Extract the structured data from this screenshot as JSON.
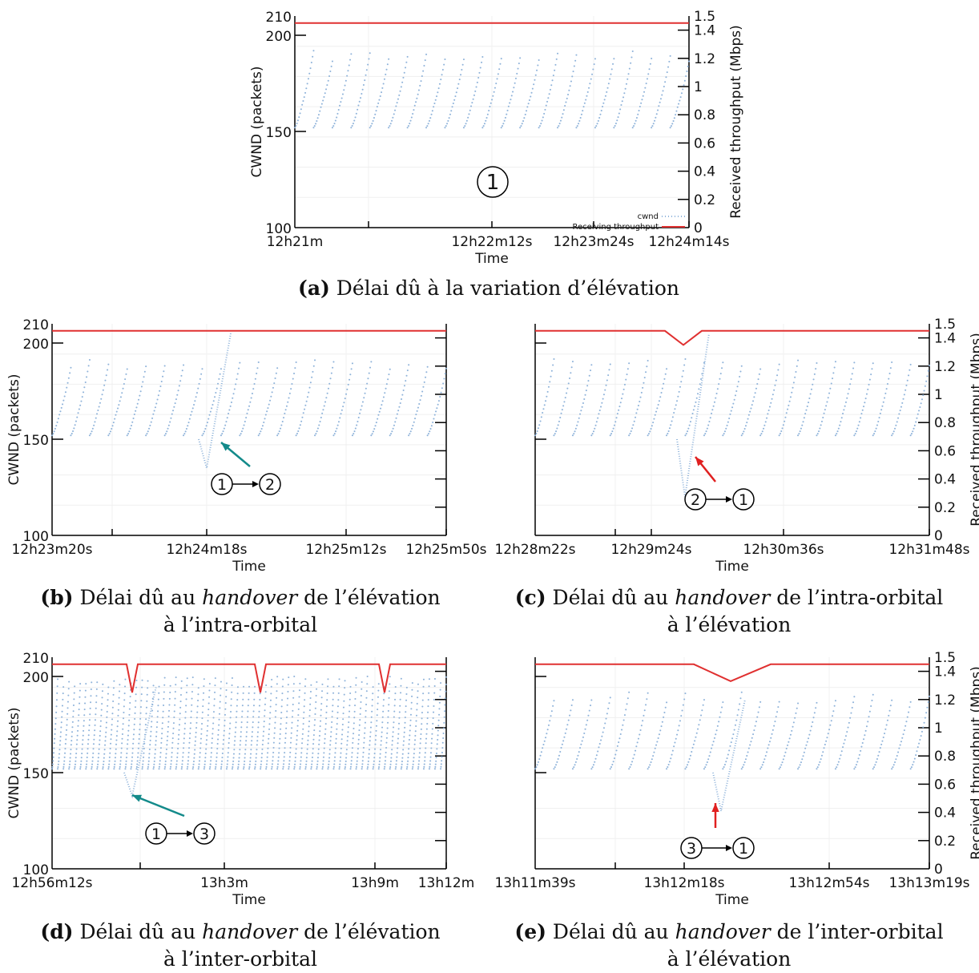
{
  "chart_data": [
    {
      "id": "a",
      "type": "line",
      "xlabel": "Time",
      "ylabel": "CWND (packets)",
      "y2label": "Received throughput (Mbps)",
      "ylim": [
        100,
        210
      ],
      "y2lim": [
        0,
        1.5
      ],
      "yticks": [
        "100",
        "150",
        "200",
        "210"
      ],
      "y2ticks": [
        "0",
        "0.2",
        "0.4",
        "0.6",
        "0.8",
        "1",
        "1.2",
        "1.4",
        "1.5"
      ],
      "xticks": [
        "12h21m",
        "12h22m12s",
        "12h23m24s",
        "12h24m14s"
      ],
      "legend": [
        "cwnd",
        "Receiving throughput"
      ],
      "legend_position": "bottom-right",
      "grid": true,
      "series": [
        {
          "name": "cwnd",
          "color": "#8fb3da",
          "summary": "sawtooth oscillation between ~150 and ~188 packets, 21 cycles"
        },
        {
          "name": "Receiving throughput",
          "color": "#e03030",
          "values": {
            "baseline": 1.45
          }
        }
      ],
      "annotations": [
        {
          "label": "1",
          "kind": "circled-number"
        }
      ],
      "caption": {
        "letter": "(a)",
        "text": "Délai dû à la variation d’élévation"
      }
    },
    {
      "id": "b",
      "type": "line",
      "xlabel": "Time",
      "ylabel": "CWND (packets)",
      "ylim": [
        100,
        210
      ],
      "yticks": [
        "100",
        "150",
        "200",
        "210"
      ],
      "xticks": [
        "12h23m20s",
        "12h24m18s",
        "12h25m12s",
        "12h25m50s"
      ],
      "grid": true,
      "series": [
        {
          "name": "cwnd",
          "color": "#8fb3da",
          "summary": "sawtooth 147–186 packets; dip to ~135 then spike to ~205 near 12h24m18s"
        },
        {
          "name": "Receiving throughput",
          "color": "#e03030",
          "values": {
            "baseline": 1.45
          }
        }
      ],
      "annotations": [
        {
          "from": "1",
          "to": "2",
          "arrow_color": "#138a8a"
        }
      ],
      "caption": {
        "letter": "(b)",
        "text_before": "Délai dû au",
        "italic": "handover",
        "text_after": "de l’élévation à l’intra-orbital"
      }
    },
    {
      "id": "c",
      "type": "line",
      "xlabel": "Time",
      "y2label": "Received throughput (Mbps)",
      "y2lim": [
        0,
        1.5
      ],
      "y2ticks": [
        "0",
        "0.2",
        "0.4",
        "0.6",
        "0.8",
        "1",
        "1.2",
        "1.4",
        "1.5"
      ],
      "xticks": [
        "12h28m22s",
        "12h29m24s",
        "12h30m36s",
        "12h31m48s"
      ],
      "grid": true,
      "series": [
        {
          "name": "cwnd",
          "color": "#8fb3da",
          "summary": "sawtooth; drop to ~0.3 then recovery spike near 12h29m24s"
        },
        {
          "name": "Receiving throughput",
          "color": "#e03030",
          "values": {
            "baseline": 1.45,
            "dip_min": 1.35
          }
        }
      ],
      "annotations": [
        {
          "from": "2",
          "to": "1",
          "arrow_color": "#e02020"
        }
      ],
      "caption": {
        "letter": "(c)",
        "text_before": "Délai dû au",
        "italic": "handover",
        "text_after": "de l’intra-orbital à l’élévation"
      }
    },
    {
      "id": "d",
      "type": "line",
      "xlabel": "Time",
      "ylabel": "CWND (packets)",
      "ylim": [
        100,
        210
      ],
      "yticks": [
        "100",
        "150",
        "200",
        "210"
      ],
      "xticks": [
        "12h56m12s",
        "13h3m",
        "13h9m",
        "13h12m"
      ],
      "grid": true,
      "series": [
        {
          "name": "cwnd",
          "color": "#8fb3da",
          "summary": "dense oscillation 150–197 packets with drops to ~138 at each handover"
        },
        {
          "name": "Receiving throughput",
          "color": "#e03030",
          "values": {
            "baseline": 1.45,
            "dip_min": 1.25
          }
        }
      ],
      "annotations": [
        {
          "from": "1",
          "to": "3",
          "arrow_color": "#138a8a"
        }
      ],
      "caption": {
        "letter": "(d)",
        "text_before": "Délai dû au",
        "italic": "handover",
        "text_after": "de l’élévation à l’inter-orbital"
      }
    },
    {
      "id": "e",
      "type": "line",
      "xlabel": "Time",
      "y2label": "Received throughput (Mbps)",
      "y2lim": [
        0,
        1.5
      ],
      "y2ticks": [
        "0",
        "0.2",
        "0.4",
        "0.6",
        "0.8",
        "1",
        "1.2",
        "1.4",
        "1.5"
      ],
      "xticks": [
        "13h11m39s",
        "13h12m18s",
        "13h12m54s",
        "13h13m19s"
      ],
      "grid": true,
      "series": [
        {
          "name": "cwnd",
          "color": "#8fb3da",
          "summary": "sawtooth; gap then drop to ~0.35 near 13h12m18s, recovery"
        },
        {
          "name": "Receiving throughput",
          "color": "#e03030",
          "values": {
            "baseline": 1.45,
            "dip_min": 1.33
          }
        }
      ],
      "annotations": [
        {
          "from": "3",
          "to": "1",
          "arrow_color": "#e02020"
        }
      ],
      "caption": {
        "letter": "(e)",
        "text_before": "Délai dû au",
        "italic": "handover",
        "text_after": "de l’inter-orbital à l’élévation"
      }
    }
  ]
}
